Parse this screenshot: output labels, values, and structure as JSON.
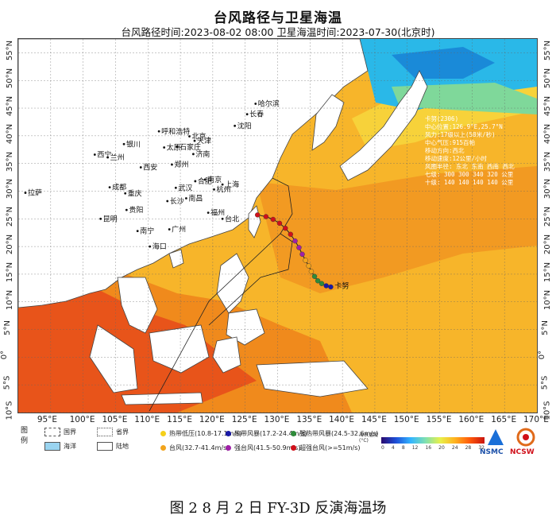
{
  "title": "台风路径与卫星海温",
  "subtitle": "台风路径时间:2023-08-02 08:00  卫星海温时间:2023-07-30(北京时)",
  "lat_labels": [
    "55°N",
    "50°N",
    "45°N",
    "40°N",
    "35°N",
    "30°N",
    "25°N",
    "20°N",
    "15°N",
    "10°N",
    "5°N",
    "0°",
    "5°S",
    "10°S"
  ],
  "lon_labels": [
    "95°E",
    "100°E",
    "105°E",
    "110°E",
    "115°E",
    "120°E",
    "125°E",
    "130°E",
    "135°E",
    "140°E",
    "145°E",
    "150°E",
    "155°E",
    "160°E",
    "165°E",
    "170°E"
  ],
  "cities": [
    "哈尔滨",
    "长春",
    "沈阳",
    "呼和浩特",
    "北京",
    "天津",
    "银川",
    "太原",
    "石家庄",
    "西宁",
    "兰州",
    "济南",
    "西安",
    "郑州",
    "合肥",
    "南京",
    "上海",
    "成都",
    "武汉",
    "杭州",
    "重庆",
    "长沙",
    "南昌",
    "拉萨",
    "贵阳",
    "福州",
    "台北",
    "昆明",
    "南宁",
    "广州",
    "海口"
  ],
  "typhoon_label": "卡努",
  "info_box": {
    "lines": [
      "卡努(2306)",
      "中心位置:126.9°E,25.7°N",
      "风力:17级以上(58米/秒)",
      "中心气压:915百帕",
      "移动方向:西北",
      "移动速度:12公里/小时",
      "风圈半径: 东北 东南 西南 西北",
      "七级:   300  300  340  320 公里",
      "十级:   140  140  140  140 公里"
    ]
  },
  "legend": {
    "title": "图例",
    "boundaries": [
      {
        "label": "国界"
      },
      {
        "label": "省界"
      },
      {
        "label": "海洋"
      },
      {
        "label": "陆地"
      }
    ],
    "intensity": [
      {
        "label": "热带低压(10.8-17.1m/s)",
        "color": "#f5d01a"
      },
      {
        "label": "热带风暴(17.2-24.4m/s)",
        "color": "#1a1aa8"
      },
      {
        "label": "强热带风暴(24.5-32.6m/s)",
        "color": "#2e8b3a"
      },
      {
        "label": "台风(32.7-41.4m/s)",
        "color": "#f2a41c"
      },
      {
        "label": "强台风(41.5-50.9m/s)",
        "color": "#a020a8"
      },
      {
        "label": "超强台风(>=51m/s)",
        "color": "#d0101a"
      }
    ],
    "colorbar_label": "海表温度(°C)",
    "colorbar_ticks": [
      "0",
      "4",
      "8",
      "12",
      "16",
      "20",
      "24",
      "28",
      "32"
    ]
  },
  "logos": {
    "left": "NSMC",
    "right": "NCSW"
  },
  "caption": "图 2   8 月 2 日 FY-3D 反演海温场",
  "colors": {
    "warm": "#f7b52a",
    "hot": "#f0781c",
    "very_hot": "#e0301a",
    "cool": "#2ab8e8",
    "land": "#ffffff"
  }
}
